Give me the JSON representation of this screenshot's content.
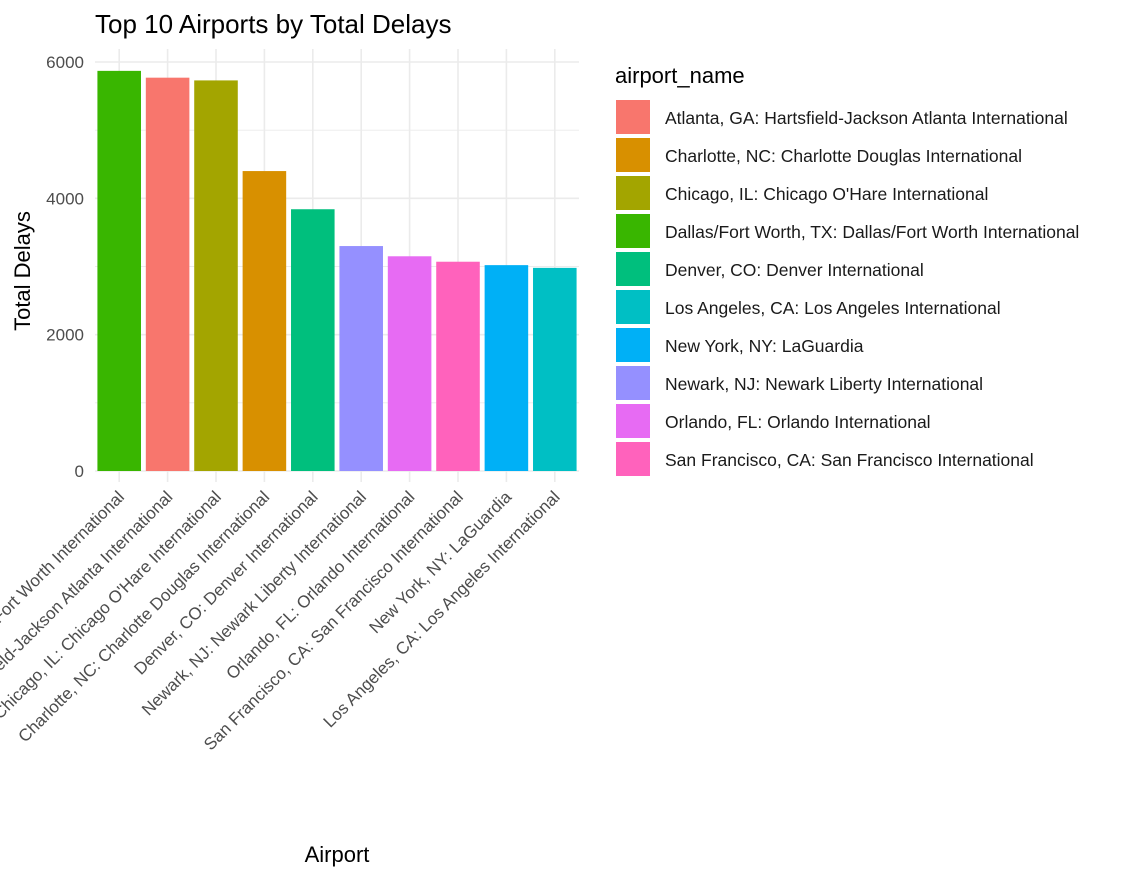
{
  "chart_data": {
    "type": "bar",
    "title": "Top 10 Airports by Total Delays",
    "xlabel": "Airport",
    "ylabel": "Total Delays",
    "ylim": [
      0,
      6000
    ],
    "yticks": [
      "0",
      "2000",
      "4000",
      "6000"
    ],
    "grid": true,
    "legend_position": "right",
    "legend_title": "airport_name",
    "categories": [
      "Dallas/Fort Worth, TX: Dallas/Fort Worth International",
      "Atlanta, GA: Hartsfield-Jackson Atlanta International",
      "Chicago, IL: Chicago O'Hare International",
      "Charlotte, NC: Charlotte Douglas International",
      "Denver, CO: Denver International",
      "Newark, NJ: Newark Liberty International",
      "Orlando, FL: Orlando International",
      "San Francisco, CA: San Francisco International",
      "New York, NY: LaGuardia",
      "Los Angeles, CA: Los Angeles International"
    ],
    "values": [
      5870,
      5770,
      5730,
      4400,
      3840,
      3300,
      3150,
      3070,
      3020,
      2980
    ],
    "legend": [
      {
        "label": "Atlanta, GA: Hartsfield-Jackson Atlanta International",
        "color": "#F8766D"
      },
      {
        "label": "Charlotte, NC: Charlotte Douglas International",
        "color": "#D89000"
      },
      {
        "label": "Chicago, IL: Chicago O'Hare International",
        "color": "#A3A500"
      },
      {
        "label": "Dallas/Fort Worth, TX: Dallas/Fort Worth International",
        "color": "#39B600"
      },
      {
        "label": "Denver, CO: Denver International",
        "color": "#00BF7D"
      },
      {
        "label": "Los Angeles, CA: Los Angeles International",
        "color": "#00BFC4"
      },
      {
        "label": "New York, NY: LaGuardia",
        "color": "#00B0F6"
      },
      {
        "label": "Newark, NJ: Newark Liberty International",
        "color": "#9590FF"
      },
      {
        "label": "Orlando, FL: Orlando International",
        "color": "#E76BF3"
      },
      {
        "label": "San Francisco, CA: San Francisco International",
        "color": "#FF62BC"
      }
    ]
  }
}
